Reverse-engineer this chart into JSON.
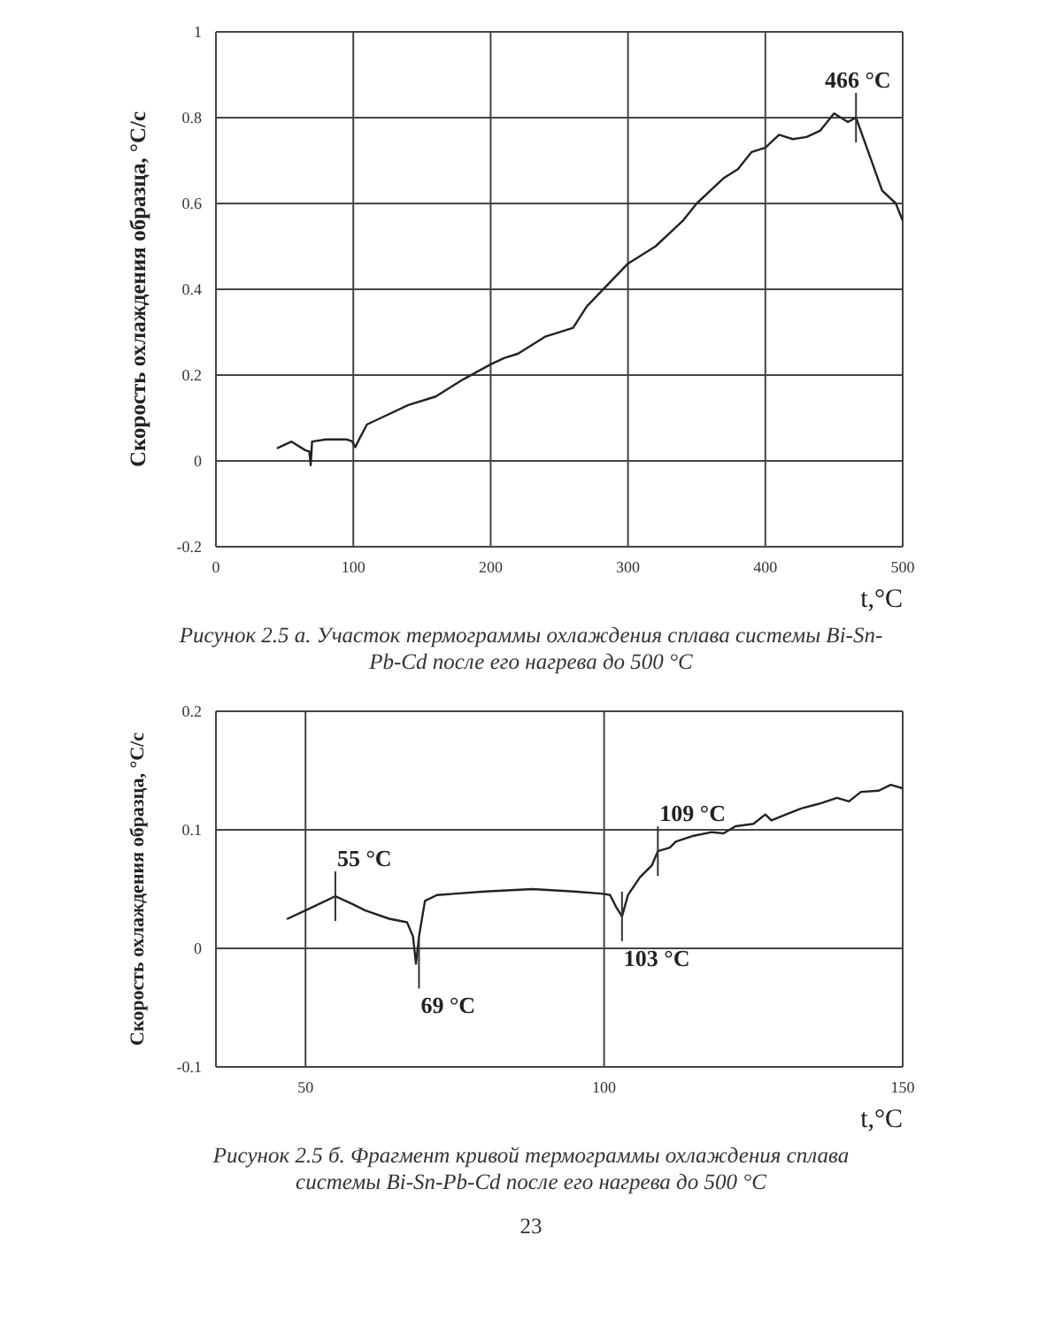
{
  "chart_data": [
    {
      "type": "line",
      "xlabel": "t,°C",
      "ylabel": "Скорость охлаждения образца, °C/c",
      "xlim": [
        0,
        500
      ],
      "xticks": [
        0,
        100,
        200,
        300,
        400,
        500
      ],
      "ylim": [
        -0.2,
        1
      ],
      "yticks": [
        -0.2,
        0,
        0.2,
        0.4,
        0.6,
        0.8,
        1
      ],
      "grid": true,
      "marker": "none",
      "line_style": "solid",
      "series": [
        {
          "color": "#222222",
          "x": [
            45,
            55,
            65,
            68,
            69,
            70,
            80,
            95,
            99,
            101.5,
            105,
            110,
            120,
            140,
            160,
            180,
            200,
            210,
            220,
            240,
            260,
            270,
            285,
            300,
            320,
            340,
            350,
            360,
            370,
            380,
            390,
            400,
            410,
            420,
            430,
            440,
            450,
            460,
            466,
            475,
            485,
            495,
            500
          ],
          "values": [
            0.03,
            0.045,
            0.025,
            0.022,
            -0.01,
            0.045,
            0.05,
            0.05,
            0.046,
            0.032,
            0.055,
            0.085,
            0.1,
            0.13,
            0.15,
            0.19,
            0.225,
            0.24,
            0.25,
            0.29,
            0.31,
            0.36,
            0.41,
            0.46,
            0.5,
            0.56,
            0.6,
            0.63,
            0.66,
            0.68,
            0.72,
            0.73,
            0.76,
            0.75,
            0.755,
            0.77,
            0.81,
            0.79,
            0.8,
            0.72,
            0.63,
            0.6,
            0.56
          ]
        }
      ],
      "annotations": [
        {
          "text": "466 °C",
          "x": 466,
          "y": 0.8
        },
        "Рисунок 2.5 а. Участок термограммы охлаждения сплава системы Bi-Sn-Pb-Cd после его нагрева до 500 °C"
      ]
    },
    {
      "type": "line",
      "xlabel": "t,°C",
      "ylabel": "Скорость охлаждения образца, °C/c",
      "xlim": [
        35,
        150
      ],
      "xticks": [
        50,
        100,
        150
      ],
      "ylim": [
        -0.1,
        0.2
      ],
      "yticks": [
        -0.1,
        0,
        0.1,
        0.2
      ],
      "grid": true,
      "marker": "none",
      "line_style": "solid",
      "series": [
        {
          "color": "#222222",
          "x": [
            47,
            50,
            55,
            58,
            60,
            64,
            67,
            68,
            68.5,
            69,
            70,
            72,
            80,
            88,
            95,
            100,
            101,
            102,
            103,
            104,
            106,
            108,
            109,
            111,
            112,
            115,
            118,
            120,
            122,
            125,
            127,
            128,
            130,
            133,
            136,
            139,
            141,
            143,
            146,
            148,
            150
          ],
          "values": [
            0.025,
            0.032,
            0.044,
            0.037,
            0.032,
            0.025,
            0.022,
            0.01,
            -0.013,
            0.01,
            0.04,
            0.045,
            0.048,
            0.05,
            0.048,
            0.046,
            0.045,
            0.035,
            0.027,
            0.045,
            0.06,
            0.07,
            0.082,
            0.085,
            0.09,
            0.095,
            0.098,
            0.097,
            0.103,
            0.105,
            0.113,
            0.108,
            0.112,
            0.118,
            0.122,
            0.127,
            0.124,
            0.132,
            0.133,
            0.138,
            0.135
          ]
        }
      ],
      "annotations": [
        {
          "text": "55 °C",
          "x": 55,
          "y": 0.044
        },
        {
          "text": "69 °C",
          "x": 69,
          "y": -0.013
        },
        {
          "text": "103 °C",
          "x": 103,
          "y": 0.027
        },
        {
          "text": "109 °C",
          "x": 109,
          "y": 0.082
        },
        "Рисунок 2.5 б. Фрагмент кривой термограммы охлаждения сплава системы Bi-Sn-Pb-Cd после его нагрева до 500 °C",
        "23"
      ]
    }
  ]
}
